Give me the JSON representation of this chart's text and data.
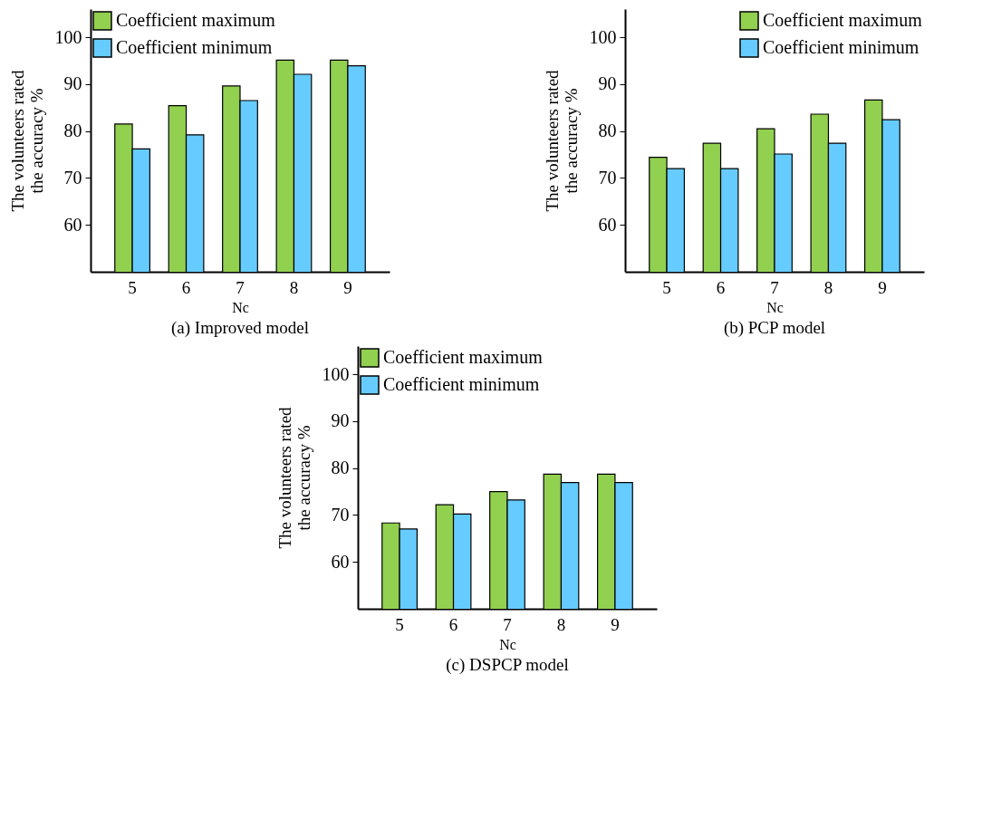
{
  "chart_data": [
    {
      "type": "bar",
      "title": "(a) Improved model",
      "xlabel": "Nc",
      "ylabel": "The volunteers rated\nthe accuracy %",
      "categories": [
        "5",
        "6",
        "7",
        "8",
        "9"
      ],
      "series": [
        {
          "name": "Coefficient maximum",
          "color": "#92d050",
          "values": [
            81.5,
            85.4,
            89.6,
            95.1,
            95.1
          ]
        },
        {
          "name": "Coefficient minimum",
          "color": "#66ccff",
          "values": [
            76.2,
            79.2,
            86.5,
            92.1,
            93.9
          ]
        }
      ],
      "ylim": [
        50,
        106
      ],
      "yticks": [
        60,
        70,
        80,
        90,
        100
      ],
      "legend": "top left"
    },
    {
      "type": "bar",
      "title": "(b) PCP model",
      "xlabel": "Nc",
      "ylabel": "The volunteers rated\nthe accuracy %",
      "categories": [
        "5",
        "6",
        "7",
        "8",
        "9"
      ],
      "series": [
        {
          "name": "Coefficient maximum",
          "color": "#92d050",
          "values": [
            74.4,
            77.4,
            80.5,
            83.6,
            86.6
          ]
        },
        {
          "name": "Coefficient minimum",
          "color": "#66ccff",
          "values": [
            72.0,
            72.0,
            75.1,
            77.4,
            82.4
          ]
        }
      ],
      "ylim": [
        50,
        106
      ],
      "yticks": [
        60,
        70,
        80,
        90,
        100
      ],
      "legend": "top right"
    },
    {
      "type": "bar",
      "title": "(c) DSPCP model",
      "xlabel": "Nc",
      "ylabel": "The volunteers rated\nthe accuracy %",
      "categories": [
        "5",
        "6",
        "7",
        "8",
        "9"
      ],
      "series": [
        {
          "name": "Coefficient maximum",
          "color": "#92d050",
          "values": [
            68.3,
            72.2,
            75.0,
            78.7,
            78.7
          ]
        },
        {
          "name": "Coefficient minimum",
          "color": "#66ccff",
          "values": [
            67.0,
            70.2,
            73.2,
            76.9,
            76.9
          ]
        }
      ],
      "ylim": [
        50,
        106
      ],
      "yticks": [
        60,
        70,
        80,
        90,
        100
      ],
      "legend": "top left"
    }
  ]
}
